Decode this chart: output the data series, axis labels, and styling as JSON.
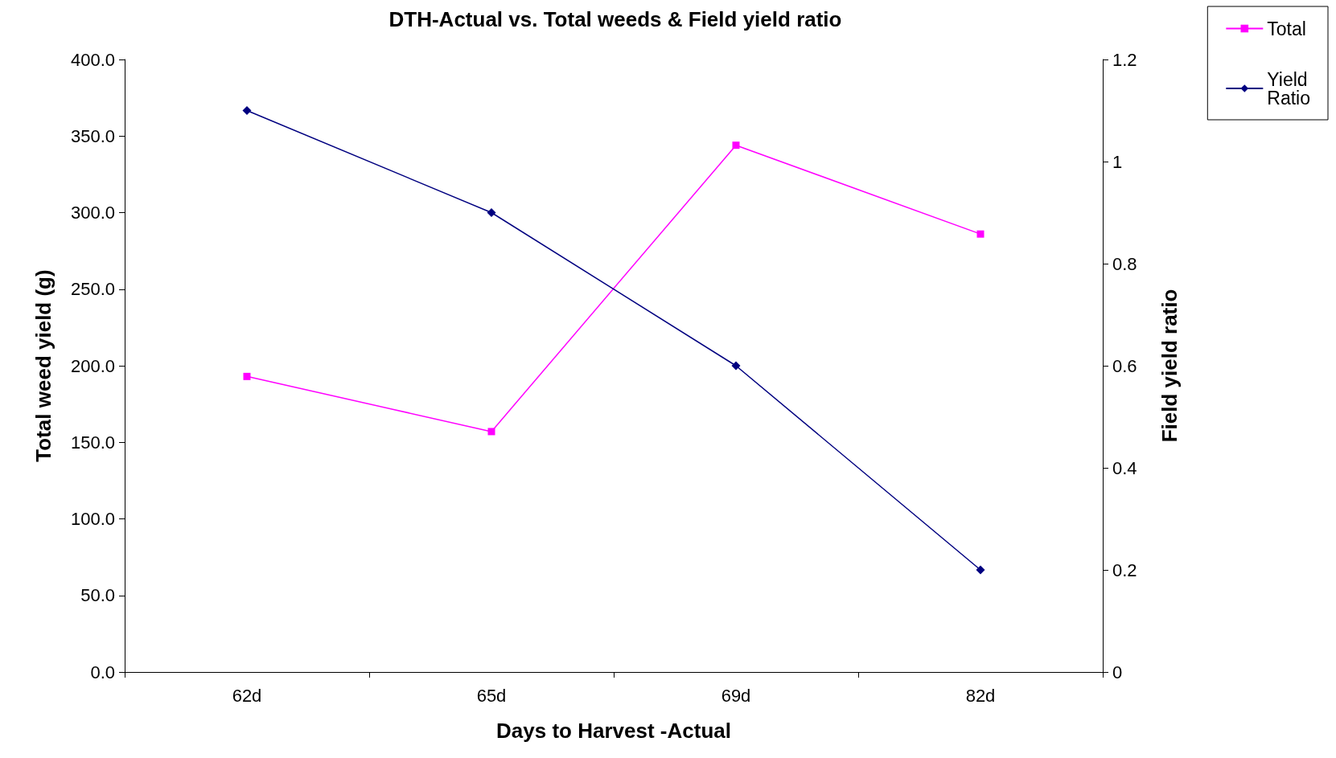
{
  "chart_data": {
    "type": "line",
    "title": "DTH-Actual vs. Total weeds & Field yield ratio",
    "xlabel": "Days to Harvest -Actual",
    "ylabel": "Total weed yield (g)",
    "y2label": "Field yield ratio",
    "categories": [
      "62d",
      "65d",
      "69d",
      "82d"
    ],
    "series": [
      {
        "name": "Total",
        "color": "#ff00ff",
        "values": [
          193,
          157,
          344,
          286
        ],
        "marker": "square"
      },
      {
        "name": "Yield Ratio",
        "color": "#000080",
        "values": [
          1.1,
          0.9,
          0.6,
          0.2
        ],
        "marker": "diamond",
        "axis": "y2"
      }
    ],
    "ylim": [
      0,
      400
    ],
    "yticks": [
      {
        "value": 0,
        "label": "0.0"
      },
      {
        "value": 50,
        "label": "50.0"
      },
      {
        "value": 100,
        "label": "100.0"
      },
      {
        "value": 150,
        "label": "150.0"
      },
      {
        "value": 200,
        "label": "200.0"
      },
      {
        "value": 250,
        "label": "250.0"
      },
      {
        "value": 300,
        "label": "300.0"
      },
      {
        "value": 350,
        "label": "350.0"
      },
      {
        "value": 400,
        "label": "400.0"
      }
    ],
    "y2lim": [
      0,
      1.2
    ],
    "y2ticks": [
      0,
      0.2,
      0.4,
      0.6,
      0.8,
      1,
      1.2
    ],
    "grid": false,
    "legend": "top right",
    "line_style": "solid"
  }
}
